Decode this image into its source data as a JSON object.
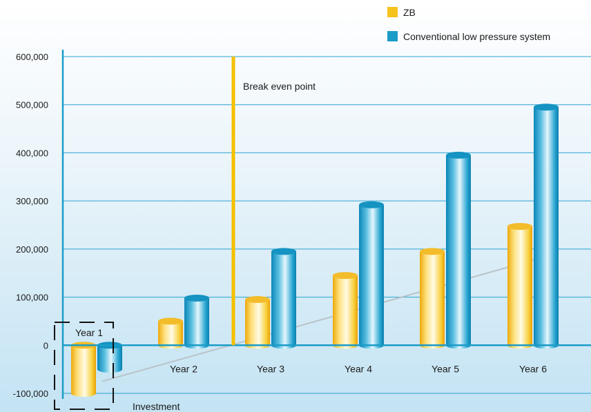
{
  "chart_data": {
    "type": "bar",
    "title": "",
    "xlabel": "",
    "ylabel": "",
    "categories": [
      "Year 1",
      "Year 2",
      "Year 3",
      "Year 4",
      "Year 5",
      "Year 6"
    ],
    "series": [
      {
        "name": "ZB",
        "color": "#f6c21c",
        "values": [
          -100000,
          50000,
          95000,
          145000,
          195000,
          247000
        ]
      },
      {
        "name": "Conventional low pressure system",
        "color": "#1a9cc8",
        "values": [
          -50000,
          98000,
          195000,
          292000,
          395000,
          495000
        ]
      }
    ],
    "ylim": [
      -100000,
      600000
    ],
    "yticks": [
      -100000,
      0,
      100000,
      200000,
      300000,
      400000,
      500000,
      600000
    ],
    "ytick_labels": [
      "-100,000",
      "0",
      "100,000",
      "200,000",
      "300,000",
      "400,000",
      "500,000",
      "600,000"
    ],
    "grid": true,
    "legend_position": "top-right",
    "annotations": {
      "break_even": {
        "label": "Break even point",
        "x_category_between": [
          "Year 2",
          "Year 3"
        ]
      },
      "investment": {
        "label": "Investment",
        "category": "Year 1"
      },
      "trend_line": {
        "from_value": -75000,
        "to_value": 178000
      }
    }
  }
}
